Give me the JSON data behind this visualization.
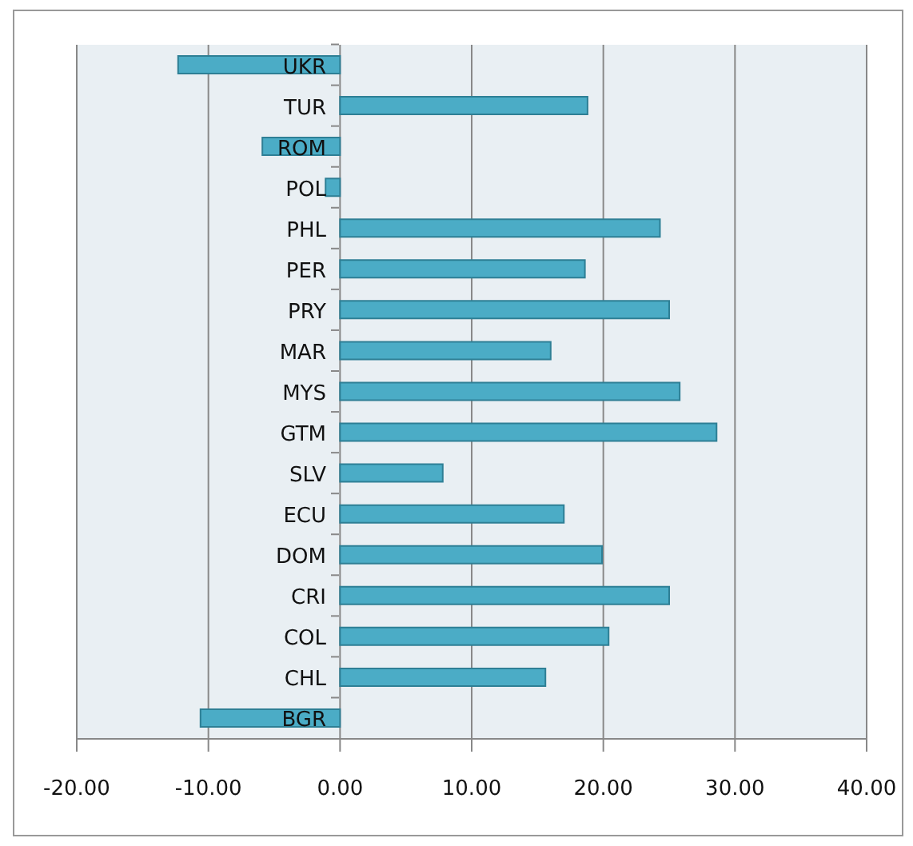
{
  "chart_data": {
    "type": "bar",
    "orientation": "horizontal",
    "categories": [
      "UKR",
      "TUR",
      "ROM",
      "POL",
      "PHL",
      "PER",
      "PRY",
      "MAR",
      "MYS",
      "GTM",
      "SLV",
      "ECU",
      "DOM",
      "CRI",
      "COL",
      "CHL",
      "BGR"
    ],
    "values": [
      -12.3,
      18.8,
      -5.9,
      -1.1,
      24.3,
      18.6,
      25.0,
      16.0,
      25.8,
      28.6,
      7.8,
      17.0,
      19.9,
      25.0,
      20.4,
      15.6,
      -10.6
    ],
    "color": "#4bacc6",
    "xlim": [
      -20,
      40
    ],
    "xticks": [
      {
        "value": -20,
        "label": "-20.00"
      },
      {
        "value": -10,
        "label": "-10.00"
      },
      {
        "value": 0,
        "label": "0.00"
      },
      {
        "value": 10,
        "label": "10.00"
      },
      {
        "value": 20,
        "label": "20.00"
      },
      {
        "value": 30,
        "label": "30.00"
      },
      {
        "value": 40,
        "label": "40.00"
      }
    ],
    "grid": "x"
  }
}
